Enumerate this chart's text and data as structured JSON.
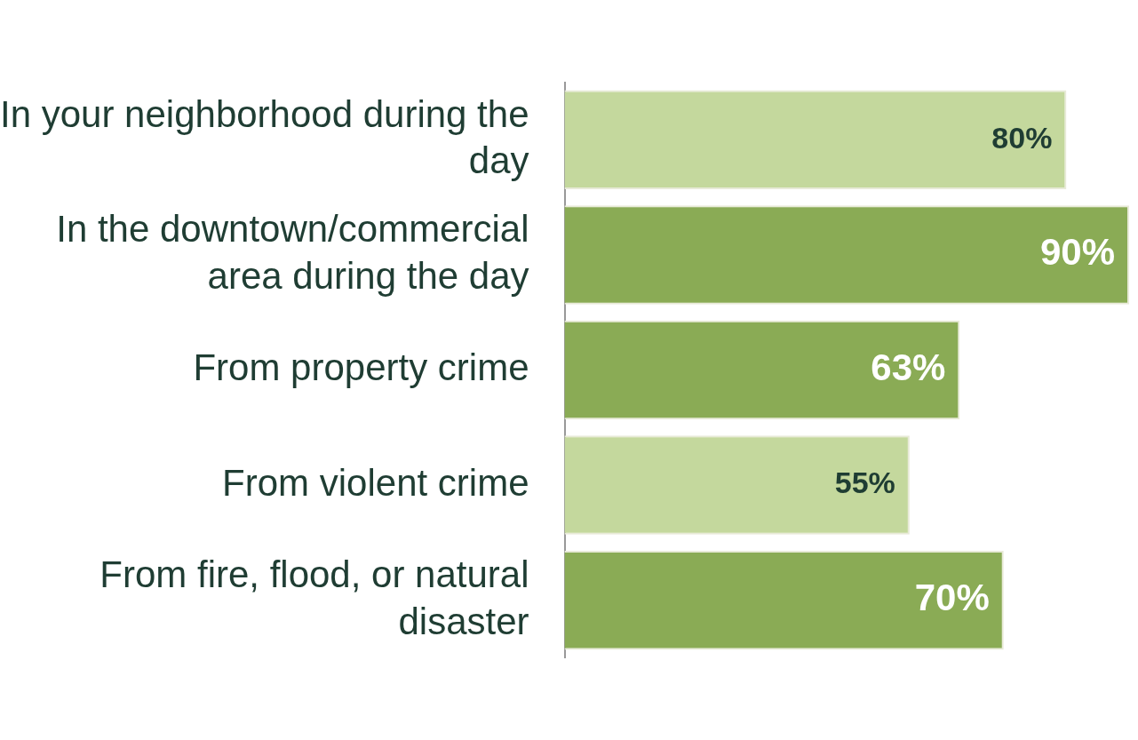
{
  "chart_data": {
    "type": "bar",
    "orientation": "horizontal",
    "categories": [
      "In your neighborhood during the day",
      "In the downtown/commercial area during the day",
      "From property crime",
      "From violent crime",
      "From fire, flood, or natural disaster"
    ],
    "values": [
      80,
      90,
      63,
      55,
      70
    ],
    "colors": [
      "#c4d89d",
      "#8aab55",
      "#8aab55",
      "#c4d89d",
      "#8aab55"
    ],
    "value_labels": [
      "80%",
      "90%",
      "63%",
      "55%",
      "70%"
    ],
    "xlim": [
      0,
      90
    ],
    "grid": false,
    "legend": false
  }
}
